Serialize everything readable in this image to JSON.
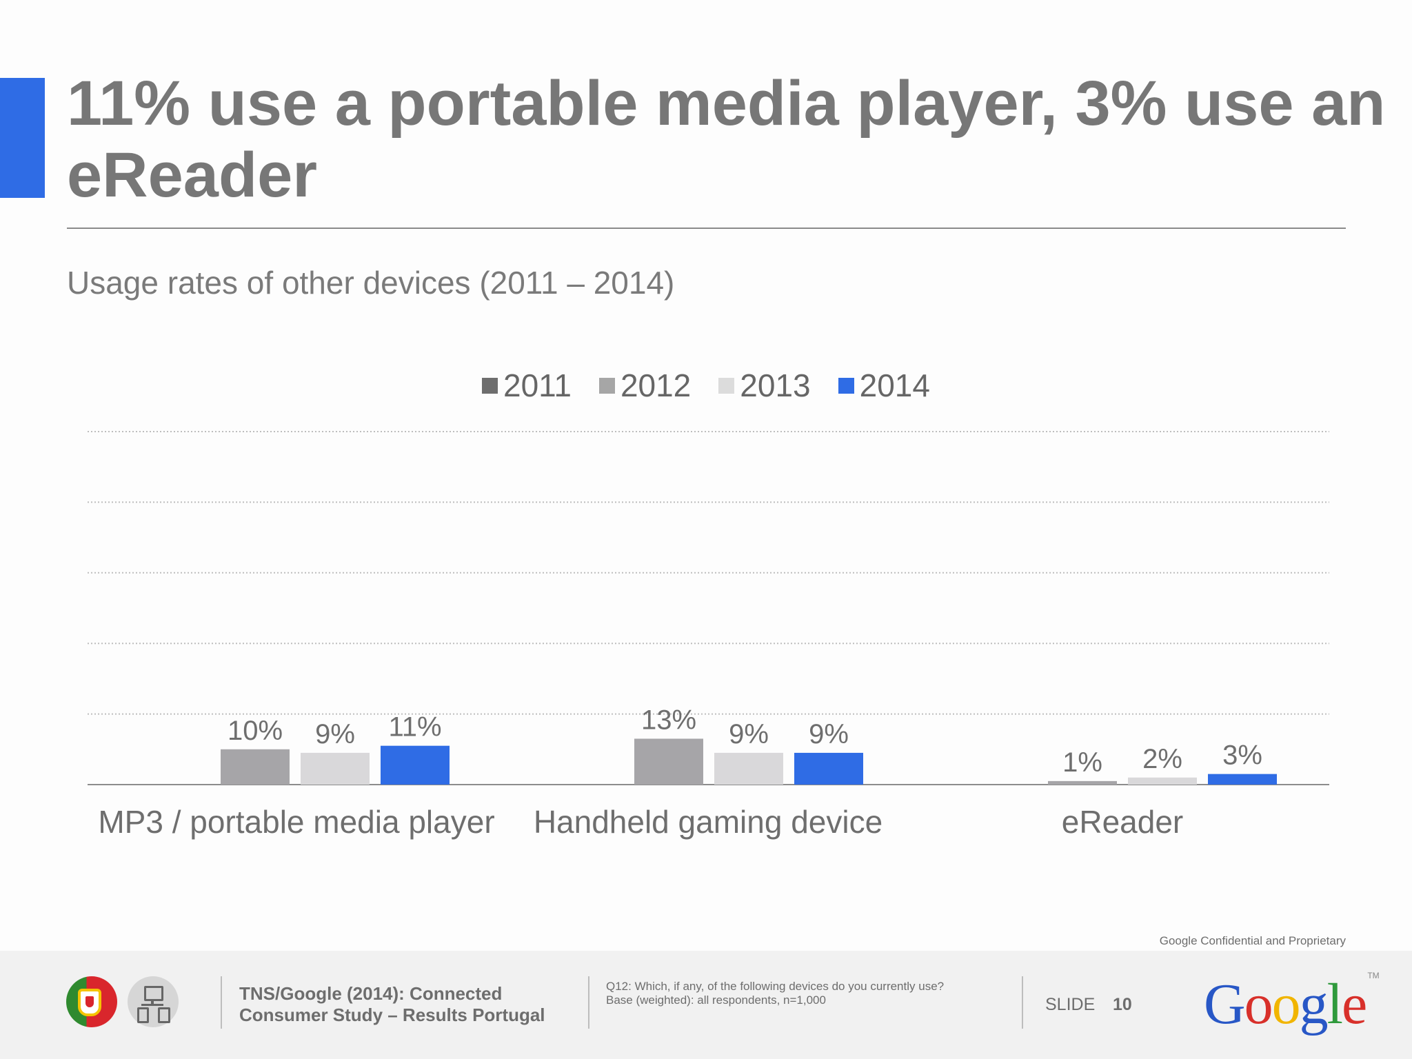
{
  "slide": {
    "title": "11% use a portable media player, 3% use an eReader",
    "subtitle": "Usage rates of other devices (2011 – 2014)"
  },
  "chart_data": {
    "type": "bar",
    "title": "",
    "xlabel": "",
    "ylabel": "",
    "categories": [
      "MP3 / portable media player",
      "Handheld gaming device",
      "eReader"
    ],
    "series": [
      {
        "name": "2011",
        "color": "#a6a6a6",
        "values": [
          null,
          null,
          null
        ],
        "labels": [
          "",
          "",
          ""
        ]
      },
      {
        "name": "2012",
        "color": "#a6a5a8",
        "values": [
          10,
          13,
          1
        ],
        "labels": [
          "10%",
          "13%",
          "1%"
        ]
      },
      {
        "name": "2013",
        "color": "#d9d8da",
        "values": [
          9,
          9,
          2
        ],
        "labels": [
          "9%",
          "9%",
          "2%"
        ]
      },
      {
        "name": "2014",
        "color": "#2f6ce5",
        "values": [
          11,
          9,
          3
        ],
        "labels": [
          "11%",
          "9%",
          "3%"
        ]
      }
    ],
    "ylim": [
      0,
      100
    ],
    "gridlines": [
      20,
      40,
      60,
      80,
      100
    ],
    "grid": true,
    "legend_position": "top-center"
  },
  "legend_colors": {
    "2011": "#6e6e6e",
    "2012": "#a6a6a6",
    "2013": "#dcdcdc",
    "2014": "#2f6ce5"
  },
  "footer": {
    "confidential": "Google Confidential and Proprietary",
    "source_line1": "TNS/Google (2014): Connected",
    "source_line2": "Consumer Study – Results Portugal",
    "question": "Q12: Which, if any, of the following devices do you currently use?",
    "base": "Base (weighted): all respondents, n=1,000",
    "slide_label": "SLIDE",
    "slide_number": "10",
    "logo_text": "Google",
    "logo_tm": "TM",
    "logo_colors": [
      "#2857c6",
      "#d8302a",
      "#f1b500",
      "#2857c6",
      "#2f9a3c",
      "#d8302a"
    ],
    "icons": [
      "portugal-flag-icon",
      "devices-icon"
    ]
  }
}
